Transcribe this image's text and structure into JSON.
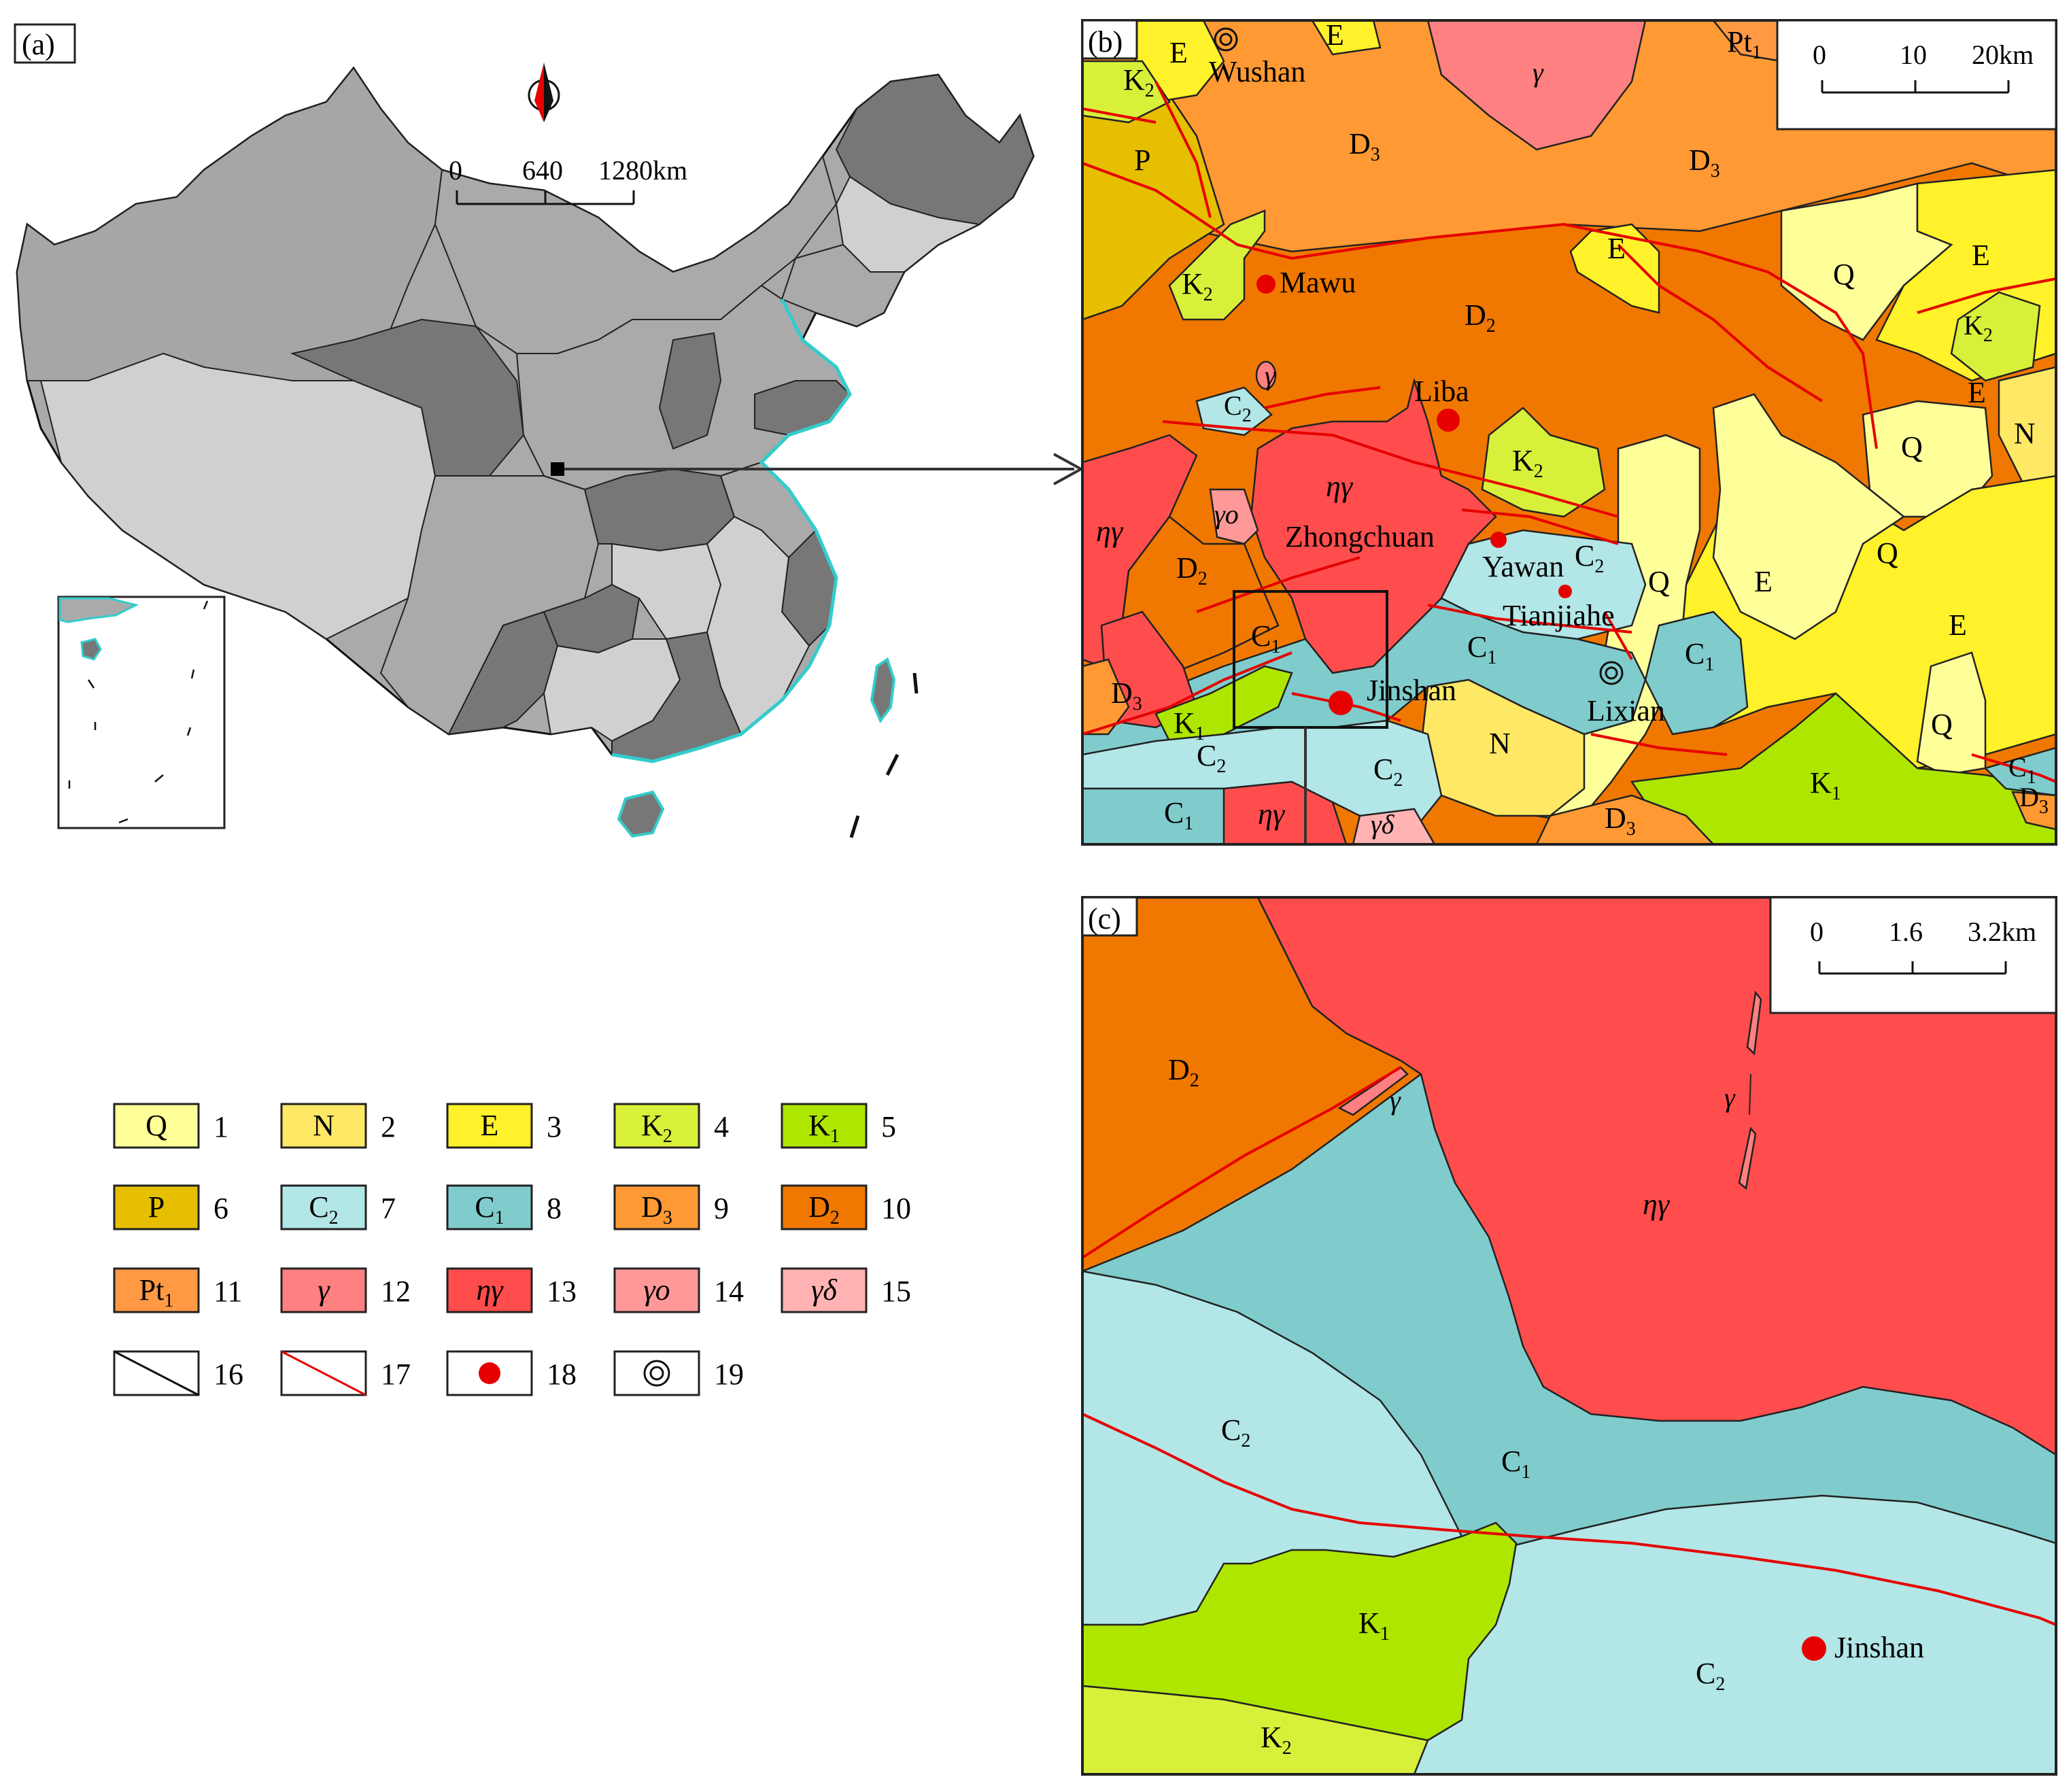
{
  "panels": {
    "a": {
      "tag": "(a)"
    },
    "b": {
      "tag": "(b)"
    },
    "c": {
      "tag": "(c)"
    }
  },
  "scale_bars": {
    "a": {
      "ticks": [
        "0",
        "640",
        "1280km"
      ]
    },
    "b": {
      "ticks": [
        "0",
        "10",
        "20km"
      ]
    },
    "c": {
      "ticks": [
        "0",
        "1.6",
        "3.2km"
      ]
    }
  },
  "colors": {
    "Q": "#ffff99",
    "N": "#ffe866",
    "E": "#fff12a",
    "K2": "#d9f03a",
    "K1": "#aee600",
    "P": "#e6bf00",
    "C2": "#b3e6e6",
    "C1": "#80cccc",
    "D3": "#ff9933",
    "D2": "#f07800",
    "Pt1": "#ff9944",
    "gamma": "#ff8080",
    "eta_gamma": "#ff4d4d",
    "gamma_o": "#ff9999",
    "gamma_delta": "#ffb3b3",
    "fault": "#e60000",
    "china_dark": "#777777",
    "china_mid": "#aaaaaa",
    "china_light": "#d0d0d0",
    "coast": "#33cccc"
  },
  "map_b": {
    "places": {
      "wushan": "Wushan",
      "mawu": "Mawu",
      "liba": "Liba",
      "zhongchuan": "Zhongchuan",
      "yawan": "Yawan",
      "tianjiahe": "Tianjiahe",
      "jinshan": "Jinshan",
      "lixian": "Lixian"
    },
    "units": {
      "e": "E",
      "k": "K",
      "p": "P",
      "pt": "Pt",
      "d": "D",
      "c": "C",
      "q": "Q",
      "n": "N",
      "gamma": "γ",
      "eta_gamma": "ηγ",
      "gamma_o": "γo",
      "gamma_delta": "γδ",
      "sub1": "1",
      "sub2": "2",
      "sub3": "3"
    }
  },
  "map_c": {
    "place": "Jinshan",
    "units": {
      "d": "D",
      "c": "C",
      "k": "K",
      "gamma": "γ",
      "eta_gamma": "ηγ"
    }
  },
  "legend": [
    {
      "symbol": "Q",
      "number": "1"
    },
    {
      "symbol": "N",
      "number": "2"
    },
    {
      "symbol": "E",
      "number": "3"
    },
    {
      "symbol": "K",
      "sub": "2",
      "number": "4"
    },
    {
      "symbol": "K",
      "sub": "1",
      "number": "5"
    },
    {
      "symbol": "P",
      "number": "6"
    },
    {
      "symbol": "C",
      "sub": "2",
      "number": "7"
    },
    {
      "symbol": "C",
      "sub": "1",
      "number": "8"
    },
    {
      "symbol": "D",
      "sub": "3",
      "number": "9"
    },
    {
      "symbol": "D",
      "sub": "2",
      "number": "10"
    },
    {
      "symbol": "Pt",
      "sub": "1",
      "number": "11"
    },
    {
      "symbol": "γ",
      "number": "12"
    },
    {
      "symbol": "ηγ",
      "number": "13"
    },
    {
      "symbol": "γo",
      "number": "14"
    },
    {
      "symbol": "γδ",
      "number": "15"
    },
    {
      "symbol": "",
      "icon": "black-line-icon",
      "number": "16"
    },
    {
      "symbol": "",
      "icon": "red-fault-line-icon",
      "number": "17"
    },
    {
      "symbol": "",
      "icon": "red-dot-icon",
      "number": "18"
    },
    {
      "symbol": "",
      "icon": "concentric-circle-icon",
      "number": "19"
    }
  ]
}
